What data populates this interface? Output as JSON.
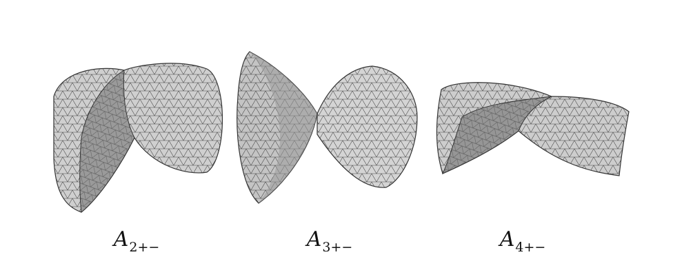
{
  "panels": [
    {
      "id": "a2",
      "symbol": "A",
      "subscript": "2+−"
    },
    {
      "id": "a3",
      "symbol": "A",
      "subscript": "3+−"
    },
    {
      "id": "a4",
      "symbol": "A",
      "subscript": "4+−"
    }
  ],
  "colors": {
    "surface_light": "#d2d2d2",
    "surface_mid": "#b4b4b4",
    "surface_dark": "#8a8a8a",
    "mesh_line": "#3a3a3a"
  }
}
